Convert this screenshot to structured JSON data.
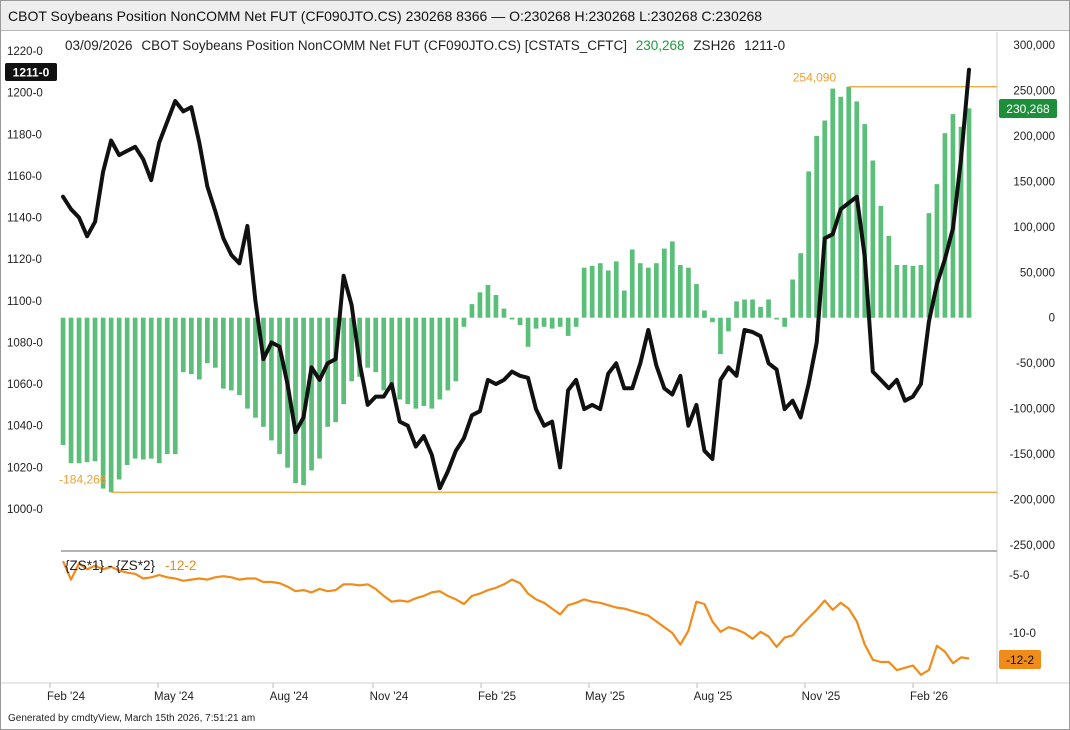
{
  "window": {
    "title": "CBOT Soybeans Position NonCOMM Net FUT (CF090JTO.CS) 230268 8366 — O:230268 H:230268 L:230268 C:230268"
  },
  "footer": "Generated by cmdtyView, March 15th 2026, 7:51:21 am",
  "colors": {
    "bars": "#5bbf7a",
    "price_line": "#111111",
    "spread_line": "#f08c1a",
    "reference_line": "#f0a030",
    "badge_green": "#1d8f3a",
    "badge_black": "#111111",
    "badge_orange": "#f08c1a",
    "cot_value_text": "#1d9a3a",
    "spread_value_text": "#f08c1a"
  },
  "chart_data": [
    {
      "type": "bar",
      "header": {
        "date": "03/09/2026",
        "label": "CBOT Soybeans Position NonCOMM Net FUT (CF090JTO.CS) [CSTATS_CFTC]",
        "value": "230,268",
        "symbol": "ZSH26",
        "symbol_value": "1211-0"
      },
      "grid": false,
      "x_tick_labels": [
        "Feb '24",
        "May '24",
        "Aug '24",
        "Nov '24",
        "Feb '25",
        "May '25",
        "Aug '25",
        "Nov '25",
        "Feb '26"
      ],
      "right_axis": {
        "ticks": [
          "300,000",
          "250,000",
          "200,000",
          "150,000",
          "100,000",
          "50,000",
          "0",
          "-50,000",
          "-100,000",
          "-150,000",
          "-200,000",
          "-250,000"
        ],
        "range": [
          -250000,
          300000
        ]
      },
      "left_axis": {
        "ticks": [
          "1220-0",
          "1200-0",
          "1180-0",
          "1160-0",
          "1140-0",
          "1120-0",
          "1100-0",
          "1080-0",
          "1060-0",
          "1040-0",
          "1020-0",
          "1000-0"
        ],
        "range": [
          980,
          1220
        ]
      },
      "series": [
        {
          "name": "CBOT Soybeans Position NonCOMM Net FUT (CF090JTO.CS)",
          "type": "bar",
          "axis": "right",
          "values": [
            -140000,
            -160000,
            -160000,
            -159000,
            -158000,
            -188000,
            -192000,
            -178000,
            -162000,
            -155000,
            -156000,
            -155000,
            -160000,
            -150000,
            -150000,
            -60000,
            -62000,
            -68000,
            -50000,
            -55000,
            -78000,
            -80000,
            -85000,
            -100000,
            -110000,
            -120000,
            -135000,
            -150000,
            -165000,
            -182000,
            -184266,
            -168000,
            -155000,
            -120000,
            -115000,
            -95000,
            -70000,
            -65000,
            -55000,
            -60000,
            -80000,
            -78000,
            -90000,
            -95000,
            -100000,
            -97000,
            -100000,
            -90000,
            -80000,
            -70000,
            -10000,
            15000,
            28000,
            36000,
            25000,
            10000,
            -2000,
            -8000,
            -32000,
            -12000,
            -10000,
            -12000,
            -10000,
            -20000,
            -10000,
            55000,
            57000,
            60000,
            52000,
            62000,
            30000,
            75000,
            60000,
            55000,
            60000,
            76000,
            84000,
            58000,
            55000,
            37000,
            8000,
            -5000,
            -40000,
            -15000,
            18000,
            20000,
            20000,
            12000,
            20000,
            -2000,
            -10000,
            42000,
            71000,
            161000,
            200000,
            217000,
            252000,
            243000,
            254090,
            238000,
            213000,
            173000,
            123000,
            90000,
            58000,
            58000,
            57000,
            58000,
            115000,
            147000,
            203000,
            224000,
            210000,
            230268
          ]
        },
        {
          "name": "ZSH26",
          "type": "line",
          "axis": "left",
          "values": [
            1150,
            1144,
            1140,
            1131,
            1138,
            1162,
            1177,
            1170,
            1172,
            1174,
            1168,
            1158,
            1176,
            1186,
            1196,
            1191,
            1193,
            1176,
            1155,
            1143,
            1130,
            1122,
            1118,
            1136,
            1100,
            1072,
            1080,
            1078,
            1060,
            1037,
            1044,
            1068,
            1062,
            1070,
            1072,
            1112,
            1098,
            1070,
            1050,
            1054,
            1054,
            1060,
            1042,
            1040,
            1030,
            1035,
            1026,
            1010,
            1018,
            1028,
            1034,
            1045,
            1047,
            1062,
            1060,
            1062,
            1066,
            1064,
            1063,
            1048,
            1040,
            1042,
            1020,
            1057,
            1062,
            1048,
            1050,
            1048,
            1065,
            1070,
            1058,
            1058,
            1070,
            1086,
            1069,
            1058,
            1055,
            1064,
            1040,
            1050,
            1028,
            1024,
            1062,
            1068,
            1064,
            1086,
            1085,
            1083,
            1070,
            1067,
            1048,
            1052,
            1044,
            1060,
            1080,
            1130,
            1132,
            1144,
            1147,
            1150,
            1121,
            1066,
            1062,
            1058,
            1062,
            1052,
            1054,
            1060,
            1090,
            1108,
            1120,
            1135,
            1168,
            1211
          ]
        }
      ]
    },
    {
      "type": "line",
      "header": {
        "label": "{ZS*1} - {ZS*2}",
        "value": "-12-2"
      },
      "right_axis": {
        "ticks": [
          "-5-0",
          "-10-0"
        ],
        "range": [
          -15,
          -4
        ]
      },
      "series": [
        {
          "name": "{ZS*1} - {ZS*2}",
          "type": "line",
          "values": [
            -3.8,
            -5.4,
            -4.0,
            -4.5,
            -4.2,
            -4.5,
            -4.3,
            -4.6,
            -4.8,
            -4.9,
            -5.3,
            -5.2,
            -5.0,
            -5.2,
            -5.3,
            -5.5,
            -5.4,
            -5.3,
            -5.4,
            -5.2,
            -5.1,
            -5.2,
            -5.4,
            -5.3,
            -5.3,
            -5.6,
            -5.6,
            -5.7,
            -6.0,
            -6.4,
            -6.3,
            -6.5,
            -6.2,
            -6.4,
            -6.3,
            -5.8,
            -5.8,
            -5.9,
            -5.8,
            -6.2,
            -6.8,
            -7.3,
            -7.2,
            -7.3,
            -7.0,
            -6.8,
            -6.5,
            -6.4,
            -6.8,
            -7.1,
            -7.5,
            -6.8,
            -6.6,
            -6.3,
            -6.1,
            -5.8,
            -5.4,
            -5.7,
            -6.6,
            -7.1,
            -7.4,
            -7.9,
            -8.4,
            -7.6,
            -7.4,
            -7.1,
            -7.3,
            -7.4,
            -7.6,
            -7.8,
            -7.9,
            -8.1,
            -8.3,
            -8.5,
            -9.0,
            -9.5,
            -10.0,
            -11.0,
            -9.8,
            -7.3,
            -7.5,
            -9.0,
            -9.9,
            -9.5,
            -9.7,
            -10.0,
            -10.5,
            -9.9,
            -10.3,
            -11.2,
            -10.4,
            -10.2,
            -9.4,
            -8.7,
            -8.0,
            -7.2,
            -8.0,
            -7.4,
            -7.9,
            -9.0,
            -11.0,
            -12.3,
            -12.5,
            -12.5,
            -13.2,
            -13.0,
            -12.8,
            -13.6,
            -13.2,
            -11.1,
            -11.6,
            -12.6,
            -12.1,
            -12.2
          ]
        }
      ]
    }
  ],
  "annotations": {
    "max_label": "254,090",
    "min_label": "-184,266",
    "cot_badge": "230,268",
    "price_badge": "1211-0",
    "spread_badge": "-12-2"
  }
}
